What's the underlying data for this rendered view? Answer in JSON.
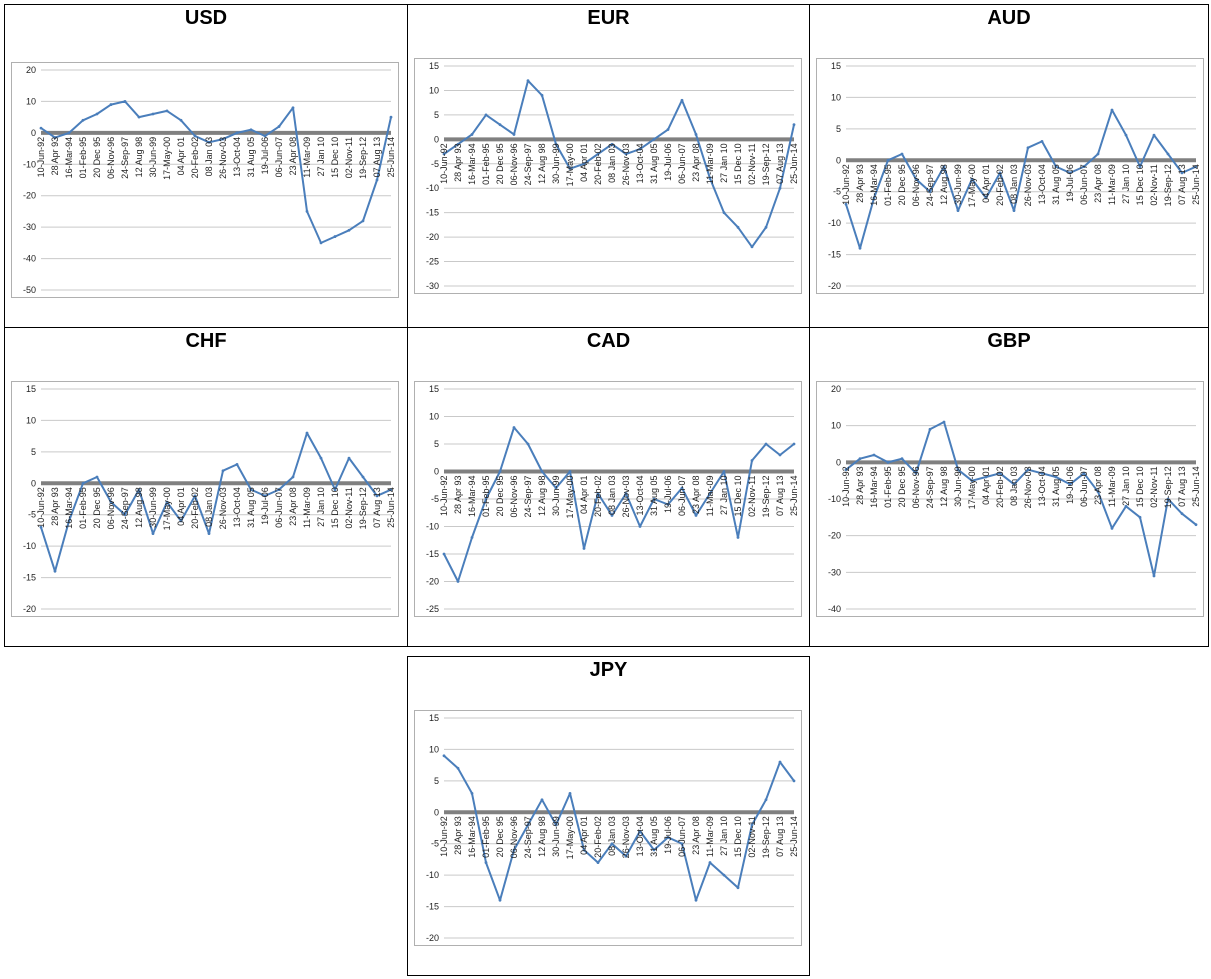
{
  "chart_data": [
    {
      "type": "line",
      "title": "USD",
      "ylim": [
        -50,
        20
      ],
      "yticks": [
        20,
        10,
        0,
        -10,
        -20,
        -30,
        -40,
        -50
      ],
      "zero_line": true,
      "categories": [
        "10-Jun-92",
        "28 Apr 93",
        "16-Mar-94",
        "01-Feb-95",
        "20 Dec 95",
        "06-Nov-96",
        "24-Sep-97",
        "12 Aug 98",
        "30-Jun-99",
        "17-May-00",
        "04 Apr 01",
        "20-Feb-02",
        "08 Jan 03",
        "26-Nov-03",
        "13-Oct-04",
        "31 Aug 05",
        "19-Jul-06",
        "06-Jun-07",
        "23 Apr 08",
        "11-Mar-09",
        "27 Jan 10",
        "15 Dec 10",
        "02-Nov-11",
        "19-Sep-12",
        "07 Aug 13",
        "25-Jun-14"
      ],
      "series": [
        {
          "values": [
            1.5,
            -1.5,
            0,
            4,
            6,
            9,
            10,
            5,
            6,
            7,
            4,
            -1,
            -3,
            -2,
            0,
            1,
            -1,
            2,
            8,
            -25,
            -35,
            -33,
            -31,
            -28,
            -15,
            5
          ]
        }
      ]
    },
    {
      "type": "line",
      "title": "EUR",
      "ylim": [
        -30,
        15
      ],
      "yticks": [
        15,
        10,
        5,
        0,
        -5,
        -10,
        -15,
        -20,
        -25,
        -30
      ],
      "zero_line": true,
      "categories": [
        "10-Jun-92",
        "28 Apr 93",
        "16-Mar-94",
        "01-Feb-95",
        "20 Dec 95",
        "06-Nov-96",
        "24-Sep-97",
        "12 Aug 98",
        "30-Jun-99",
        "17-May-00",
        "04 Apr 01",
        "20-Feb-02",
        "08 Jan 03",
        "26-Nov-03",
        "13-Oct-04",
        "31 Aug 05",
        "19-Jul-06",
        "06-Jun-07",
        "23 Apr 08",
        "11-Mar-09",
        "27 Jan 10",
        "15 Dec 10",
        "02-Nov-11",
        "19-Sep-12",
        "07 Aug 13",
        "25-Jun-14"
      ],
      "series": [
        {
          "values": [
            -3,
            -1,
            1,
            5,
            3,
            1,
            12,
            9,
            -1,
            -6,
            -5,
            -3,
            -1,
            -3,
            -2,
            0,
            2,
            8,
            1,
            -8,
            -15,
            -18,
            -22,
            -18,
            -10,
            3
          ]
        }
      ]
    },
    {
      "type": "line",
      "title": "AUD",
      "ylim": [
        -20,
        15
      ],
      "yticks": [
        15,
        10,
        5,
        0,
        -5,
        -10,
        -15,
        -20
      ],
      "zero_line": true,
      "categories": [
        "10-Jun-92",
        "28 Apr 93",
        "16-Mar-94",
        "01-Feb-95",
        "20 Dec 95",
        "06-Nov-96",
        "24-Sep-97",
        "12 Aug 98",
        "30-Jun-99",
        "17-May-00",
        "04 Apr 01",
        "20-Feb-02",
        "08 Jan 03",
        "26-Nov-03",
        "13-Oct-04",
        "31 Aug 05",
        "19-Jul-06",
        "06-Jun-07",
        "23 Apr 08",
        "11-Mar-09",
        "27 Jan 10",
        "15 Dec 10",
        "02-Nov-11",
        "19-Sep-12",
        "07 Aug 13",
        "25-Jun-14"
      ],
      "series": [
        {
          "values": [
            -7,
            -14,
            -6,
            0,
            1,
            -3,
            -5,
            -1,
            -8,
            -3,
            -6,
            -2,
            -8,
            2,
            3,
            -1,
            -2,
            -1,
            1,
            8,
            4,
            -1,
            4,
            1,
            -2,
            -1
          ]
        }
      ]
    },
    {
      "type": "line",
      "title": "CHF",
      "ylim": [
        -20,
        15
      ],
      "yticks": [
        15,
        10,
        5,
        0,
        -5,
        -10,
        -15,
        -20
      ],
      "zero_line": true,
      "categories": [
        "10-Jun-92",
        "28 Apr 93",
        "16-Mar-94",
        "01-Feb-95",
        "20 Dec 95",
        "06-Nov-96",
        "24-Sep-97",
        "12 Aug 98",
        "30-Jun-99",
        "17-May-00",
        "04 Apr 01",
        "20-Feb-02",
        "08 Jan 03",
        "26-Nov-03",
        "13-Oct-04",
        "31 Aug 05",
        "19-Jul-06",
        "06-Jun-07",
        "23 Apr 08",
        "11-Mar-09",
        "27 Jan 10",
        "15 Dec 10",
        "02-Nov-11",
        "19-Sep-12",
        "07 Aug 13",
        "25-Jun-14"
      ],
      "series": [
        {
          "values": [
            -7,
            -14,
            -6,
            0,
            1,
            -3,
            -5,
            -1,
            -8,
            -3,
            -6,
            -2,
            -8,
            2,
            3,
            -1,
            -2,
            -1,
            1,
            8,
            4,
            -1,
            4,
            1,
            -2,
            -1
          ]
        }
      ]
    },
    {
      "type": "line",
      "title": "CAD",
      "ylim": [
        -25,
        15
      ],
      "yticks": [
        15,
        10,
        5,
        0,
        -5,
        -10,
        -15,
        -20,
        -25
      ],
      "zero_line": true,
      "categories": [
        "10-Jun-92",
        "28 Apr 93",
        "16-Mar-94",
        "01-Feb-95",
        "20 Dec 95",
        "06-Nov-96",
        "24-Sep-97",
        "12 Aug 98",
        "30-Jun-99",
        "17-May-00",
        "04 Apr 01",
        "20-Feb-02",
        "08 Jan 03",
        "26-Nov-03",
        "13-Oct-04",
        "31 Aug 05",
        "19-Jul-06",
        "06-Jun-07",
        "23 Apr 08",
        "11-Mar-09",
        "27 Jan 10",
        "15 Dec 10",
        "02-Nov-11",
        "19-Sep-12",
        "07 Aug 13",
        "25-Jun-14"
      ],
      "series": [
        {
          "values": [
            -15,
            -20,
            -12,
            -5,
            0,
            8,
            5,
            0,
            -3,
            0,
            -14,
            -4,
            -8,
            -4,
            -10,
            -5,
            -6,
            -3,
            -8,
            -4,
            0,
            -12,
            2,
            5,
            3,
            5
          ]
        }
      ]
    },
    {
      "type": "line",
      "title": "GBP",
      "ylim": [
        -40,
        20
      ],
      "yticks": [
        20,
        10,
        0,
        -10,
        -20,
        -30,
        -40
      ],
      "zero_line": true,
      "categories": [
        "10-Jun-92",
        "28 Apr 93",
        "16-Mar-94",
        "01-Feb-95",
        "20 Dec 95",
        "06-Nov-96",
        "24-Sep-97",
        "12 Aug 98",
        "30-Jun-99",
        "17-May-00",
        "04 Apr 01",
        "20-Feb-02",
        "08 Jan 03",
        "26-Nov-03",
        "13-Oct-04",
        "31 Aug 05",
        "19-Jul-06",
        "06-Jun-07",
        "23 Apr 08",
        "11-Mar-09",
        "27 Jan 10",
        "15 Dec 10",
        "02-Nov-11",
        "19-Sep-12",
        "07 Aug 13",
        "25-Jun-14"
      ],
      "series": [
        {
          "values": [
            -2,
            1,
            2,
            0,
            1,
            -3,
            9,
            11,
            -2,
            -5,
            -4,
            -3,
            -6,
            -2,
            -3,
            -4,
            -6,
            -3,
            -8,
            -18,
            -12,
            -15,
            -31,
            -10,
            -14,
            -17
          ]
        }
      ]
    },
    {
      "type": "line",
      "title": "JPY",
      "ylim": [
        -20,
        15
      ],
      "yticks": [
        15,
        10,
        5,
        0,
        -5,
        -10,
        -15,
        -20
      ],
      "zero_line": true,
      "categories": [
        "10-Jun-92",
        "28 Apr 93",
        "16-Mar-94",
        "01-Feb-95",
        "20 Dec 95",
        "06-Nov-96",
        "24-Sep-97",
        "12 Aug 98",
        "30-Jun-99",
        "17-May-00",
        "04 Apr 01",
        "20-Feb-02",
        "08 Jan 03",
        "26-Nov-03",
        "13-Oct-04",
        "31 Aug 05",
        "19-Jul-06",
        "06-Jun-07",
        "23 Apr 08",
        "11-Mar-09",
        "27 Jan 10",
        "15 Dec 10",
        "02-Nov-11",
        "19-Sep-12",
        "07 Aug 13",
        "25-Jun-14"
      ],
      "series": [
        {
          "values": [
            9,
            7,
            3,
            -8,
            -14,
            -6,
            -2,
            2,
            -2,
            3,
            -6,
            -8,
            -5,
            -7,
            -3,
            -6,
            -4,
            -5,
            -14,
            -8,
            -10,
            -12,
            -2,
            2,
            8,
            5
          ]
        }
      ]
    }
  ]
}
